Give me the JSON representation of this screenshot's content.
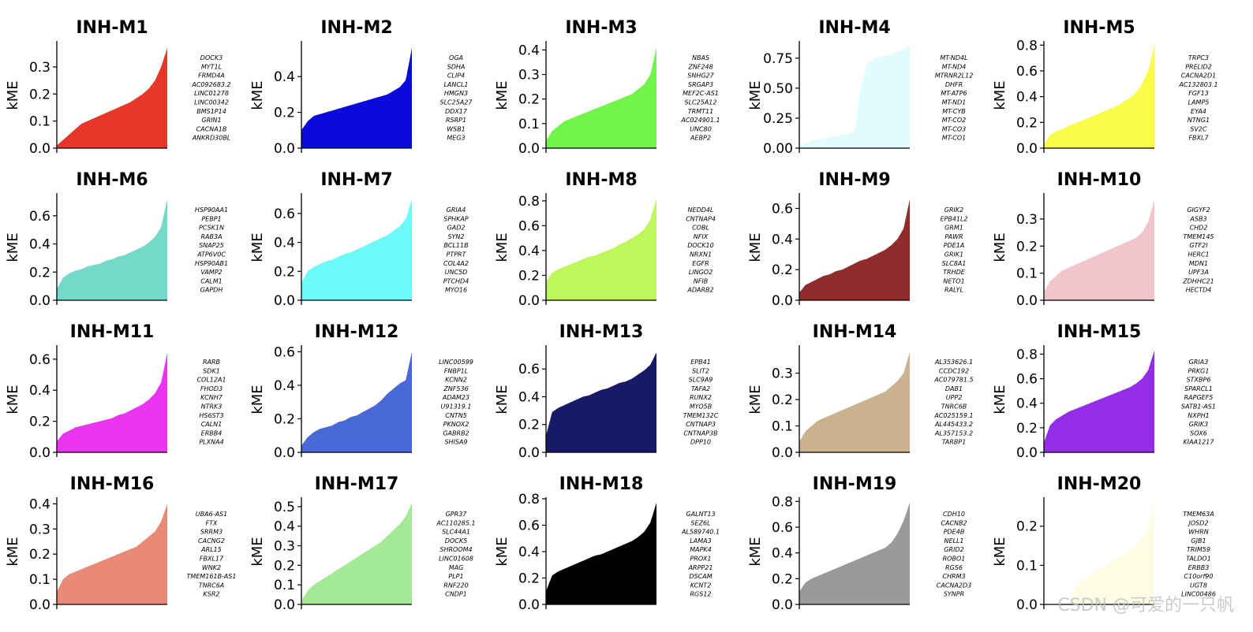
{
  "watermark": "CSDN @可爱的一只帆",
  "chart_data": [
    {
      "type": "area",
      "title": "INH-M1",
      "ylabel": "kME",
      "color": "#e8362a",
      "ylim": [
        0,
        0.39
      ],
      "yticks": [
        0.0,
        0.1,
        0.2,
        0.3
      ],
      "tick_labels": [
        "0.0",
        "0.1",
        "0.2",
        "0.3"
      ],
      "values": [
        0.01,
        0.03,
        0.05,
        0.07,
        0.09,
        0.1,
        0.11,
        0.12,
        0.13,
        0.14,
        0.15,
        0.16,
        0.17,
        0.185,
        0.2,
        0.22,
        0.25,
        0.3,
        0.37
      ],
      "genes": [
        "DOCK3",
        "MYT1L",
        "FRMD4A",
        "AC092683.2",
        "LINC01278",
        "LINC00342",
        "BMS1P14",
        "GRIN1",
        "CACNA1B",
        "ANKRD30BL"
      ]
    },
    {
      "type": "area",
      "title": "INH-M2",
      "ylabel": "kME",
      "color": "#0a0adf",
      "ylim": [
        0,
        0.59
      ],
      "yticks": [
        0.0,
        0.2,
        0.4
      ],
      "tick_labels": [
        "0.0",
        "0.2",
        "0.4"
      ],
      "values": [
        0.1,
        0.15,
        0.18,
        0.19,
        0.2,
        0.21,
        0.22,
        0.23,
        0.24,
        0.25,
        0.26,
        0.27,
        0.28,
        0.29,
        0.3,
        0.32,
        0.34,
        0.38,
        0.56
      ],
      "genes": [
        "OGA",
        "SDHA",
        "CLIP4",
        "LANCL1",
        "HMGN3",
        "SLC25A27",
        "DDX17",
        "RSRP1",
        "WSB1",
        "MEG3"
      ]
    },
    {
      "type": "area",
      "title": "INH-M3",
      "ylabel": "kME",
      "color": "#72f54a",
      "ylim": [
        0,
        0.43
      ],
      "yticks": [
        0.0,
        0.1,
        0.2,
        0.3,
        0.4
      ],
      "tick_labels": [
        "0.0",
        "0.1",
        "0.2",
        "0.3",
        "0.4"
      ],
      "values": [
        0.03,
        0.07,
        0.09,
        0.11,
        0.12,
        0.13,
        0.14,
        0.15,
        0.16,
        0.17,
        0.18,
        0.19,
        0.2,
        0.21,
        0.22,
        0.24,
        0.26,
        0.3,
        0.41
      ],
      "genes": [
        "NBAS",
        "ZNF248",
        "SNHG27",
        "SRGAP3",
        "MEF2C-AS1",
        "SLC25A12",
        "TRMT11",
        "AC024901.1",
        "UNC80",
        "AEBP2"
      ]
    },
    {
      "type": "area",
      "title": "INH-M4",
      "ylabel": "kME",
      "color": "#e0fcfc",
      "ylim": [
        0,
        0.88
      ],
      "yticks": [
        0.0,
        0.25,
        0.5,
        0.75
      ],
      "tick_labels": [
        "0.00",
        "0.25",
        "0.50",
        "0.75"
      ],
      "values": [
        0.02,
        0.04,
        0.06,
        0.07,
        0.08,
        0.09,
        0.1,
        0.11,
        0.12,
        0.14,
        0.5,
        0.7,
        0.74,
        0.76,
        0.77,
        0.78,
        0.8,
        0.82,
        0.86
      ],
      "genes": [
        "MT-ND4L",
        "MT-ND4",
        "MTRNR2L12",
        "DHFR",
        "MT-ATP6",
        "MT-ND1",
        "MT-CYB",
        "MT-CO2",
        "MT-CO3",
        "MT-CO1"
      ]
    },
    {
      "type": "area",
      "title": "INH-M5",
      "ylabel": "kME",
      "color": "#fbfb4a",
      "ylim": [
        0,
        0.82
      ],
      "yticks": [
        0.0,
        0.2,
        0.4,
        0.6,
        0.8
      ],
      "tick_labels": [
        "0.0",
        "0.2",
        "0.4",
        "0.6",
        "0.8"
      ],
      "values": [
        0.03,
        0.1,
        0.13,
        0.15,
        0.17,
        0.19,
        0.21,
        0.23,
        0.25,
        0.27,
        0.29,
        0.31,
        0.33,
        0.36,
        0.39,
        0.43,
        0.5,
        0.6,
        0.8
      ],
      "genes": [
        "TRPC3",
        "PRELID2",
        "CACNA2D1",
        "AC132803.1",
        "FGF13",
        "LAMP5",
        "EYA4",
        "NTNG1",
        "SV2C",
        "FBXL7"
      ]
    },
    {
      "type": "area",
      "title": "INH-M6",
      "ylabel": "kME",
      "color": "#73d9c9",
      "ylim": [
        0,
        0.75
      ],
      "yticks": [
        0.0,
        0.2,
        0.4,
        0.6
      ],
      "tick_labels": [
        "0.0",
        "0.2",
        "0.4",
        "0.6"
      ],
      "values": [
        0.08,
        0.16,
        0.19,
        0.21,
        0.22,
        0.24,
        0.25,
        0.26,
        0.28,
        0.29,
        0.31,
        0.32,
        0.34,
        0.36,
        0.38,
        0.41,
        0.45,
        0.52,
        0.72
      ],
      "genes": [
        "HSP90AA1",
        "PEBP1",
        "PCSK1N",
        "RAB3A",
        "SNAP25",
        "ATP6V0C",
        "HSP90AB1",
        "VAMP2",
        "CALM1",
        "GAPDH"
      ]
    },
    {
      "type": "area",
      "title": "INH-M7",
      "ylabel": "kME",
      "color": "#6ffafa",
      "ylim": [
        0,
        0.73
      ],
      "yticks": [
        0.0,
        0.2,
        0.4,
        0.6
      ],
      "tick_labels": [
        "0.0",
        "0.2",
        "0.4",
        "0.6"
      ],
      "values": [
        0.12,
        0.2,
        0.23,
        0.25,
        0.27,
        0.28,
        0.3,
        0.32,
        0.33,
        0.35,
        0.37,
        0.39,
        0.41,
        0.43,
        0.45,
        0.48,
        0.51,
        0.56,
        0.7
      ],
      "genes": [
        "GRIA4",
        "SPHKAP",
        "GAD2",
        "SYN2",
        "BCL11B",
        "PTPRT",
        "COL4A2",
        "UNC5D",
        "PTCHD4",
        "MYO16"
      ]
    },
    {
      "type": "area",
      "title": "INH-M8",
      "ylabel": "kME",
      "color": "#bdf75a",
      "ylim": [
        0,
        0.85
      ],
      "yticks": [
        0.0,
        0.2,
        0.4,
        0.6,
        0.8
      ],
      "tick_labels": [
        "0.0",
        "0.2",
        "0.4",
        "0.6",
        "0.8"
      ],
      "values": [
        0.15,
        0.22,
        0.25,
        0.27,
        0.29,
        0.31,
        0.33,
        0.35,
        0.36,
        0.38,
        0.4,
        0.42,
        0.45,
        0.47,
        0.5,
        0.53,
        0.57,
        0.65,
        0.82
      ],
      "genes": [
        "NEDD4L",
        "CNTNAP4",
        "COBL",
        "NFIX",
        "DOCK10",
        "NRXN1",
        "EGFR",
        "LINGO2",
        "NFIB",
        "ADARB2"
      ]
    },
    {
      "type": "area",
      "title": "INH-M9",
      "ylabel": "kME",
      "color": "#922b2b",
      "ylim": [
        0,
        0.69
      ],
      "yticks": [
        0.0,
        0.2,
        0.4,
        0.6
      ],
      "tick_labels": [
        "0.0",
        "0.2",
        "0.4",
        "0.6"
      ],
      "values": [
        0.05,
        0.1,
        0.12,
        0.14,
        0.16,
        0.17,
        0.19,
        0.2,
        0.22,
        0.24,
        0.26,
        0.27,
        0.29,
        0.31,
        0.33,
        0.36,
        0.4,
        0.47,
        0.66
      ],
      "genes": [
        "GRIK2",
        "EPB41L2",
        "GRM1",
        "PAWR",
        "PDE1A",
        "GRIK1",
        "SLC8A1",
        "TRHDE",
        "NETO1",
        "RALYL"
      ]
    },
    {
      "type": "area",
      "title": "INH-M10",
      "ylabel": "kME",
      "color": "#f2c5cd",
      "ylim": [
        0,
        0.39
      ],
      "yticks": [
        0.0,
        0.1,
        0.2,
        0.3
      ],
      "tick_labels": [
        "0.0",
        "0.1",
        "0.2",
        "0.3"
      ],
      "values": [
        0.03,
        0.07,
        0.09,
        0.11,
        0.12,
        0.13,
        0.14,
        0.15,
        0.16,
        0.17,
        0.18,
        0.19,
        0.2,
        0.21,
        0.22,
        0.23,
        0.25,
        0.29,
        0.37
      ],
      "genes": [
        "GIGYF2",
        "ASB3",
        "CHD2",
        "TMEM145",
        "GTF2I",
        "HERC1",
        "MDN1",
        "UPF3A",
        "ZDHHC21",
        "HECTD4"
      ]
    },
    {
      "type": "area",
      "title": "INH-M11",
      "ylabel": "kME",
      "color": "#ea35ee",
      "ylim": [
        0,
        0.68
      ],
      "yticks": [
        0.0,
        0.2,
        0.4,
        0.6
      ],
      "tick_labels": [
        "0.0",
        "0.2",
        "0.4",
        "0.6"
      ],
      "values": [
        0.07,
        0.12,
        0.14,
        0.16,
        0.17,
        0.18,
        0.19,
        0.2,
        0.21,
        0.22,
        0.24,
        0.25,
        0.27,
        0.29,
        0.31,
        0.34,
        0.38,
        0.45,
        0.64
      ],
      "genes": [
        "RARB",
        "SDK1",
        "COL12A1",
        "FHOD3",
        "KCNH7",
        "NTRK3",
        "HS6ST3",
        "CALN1",
        "ERBB4",
        "PLXNA4"
      ]
    },
    {
      "type": "area",
      "title": "INH-M12",
      "ylabel": "kME",
      "color": "#4a69d9",
      "ylim": [
        0,
        0.63
      ],
      "yticks": [
        0.0,
        0.2,
        0.4,
        0.6
      ],
      "tick_labels": [
        "0.0",
        "0.2",
        "0.4",
        "0.6"
      ],
      "values": [
        0.04,
        0.09,
        0.12,
        0.14,
        0.15,
        0.16,
        0.18,
        0.19,
        0.21,
        0.22,
        0.24,
        0.26,
        0.28,
        0.31,
        0.35,
        0.38,
        0.41,
        0.43,
        0.6
      ],
      "genes": [
        "LINC00599",
        "FNBP1L",
        "KCNN2",
        "ZNF536",
        "ADAM23",
        "U91319.1",
        "CNTN5",
        "PKNOX2",
        "GABRB2",
        "SHISA9"
      ]
    },
    {
      "type": "area",
      "title": "INH-M13",
      "ylabel": "kME",
      "color": "#19196a",
      "ylim": [
        0,
        0.76
      ],
      "yticks": [
        0.0,
        0.2,
        0.4,
        0.6
      ],
      "tick_labels": [
        "0.0",
        "0.2",
        "0.4",
        "0.6"
      ],
      "values": [
        0.12,
        0.29,
        0.32,
        0.34,
        0.36,
        0.38,
        0.4,
        0.41,
        0.43,
        0.45,
        0.46,
        0.48,
        0.5,
        0.51,
        0.53,
        0.56,
        0.59,
        0.63,
        0.72
      ],
      "genes": [
        "EPB41",
        "SLIT2",
        "SLC9A9",
        "TAFA2",
        "RUNX2",
        "MYO5B",
        "TMEM132C",
        "CNTNAP3",
        "CNTNAP3B",
        "DPP10"
      ]
    },
    {
      "type": "area",
      "title": "INH-M14",
      "ylabel": "kME",
      "color": "#cbb28f",
      "ylim": [
        0,
        0.4
      ],
      "yticks": [
        0.0,
        0.1,
        0.2,
        0.3
      ],
      "tick_labels": [
        "0.0",
        "0.1",
        "0.2",
        "0.3"
      ],
      "values": [
        0.04,
        0.08,
        0.1,
        0.12,
        0.13,
        0.14,
        0.15,
        0.16,
        0.17,
        0.18,
        0.19,
        0.2,
        0.21,
        0.22,
        0.23,
        0.25,
        0.27,
        0.3,
        0.38
      ],
      "genes": [
        "AL353626.1",
        "CCDC192",
        "AC079781.5",
        "DAB1",
        "UPP2",
        "TNRC6B",
        "AC025159.1",
        "AL445433.2",
        "AL357153.2",
        "TARBP1"
      ]
    },
    {
      "type": "area",
      "title": "INH-M15",
      "ylabel": "kME",
      "color": "#932de8",
      "ylim": [
        0,
        0.86
      ],
      "yticks": [
        0.0,
        0.2,
        0.4,
        0.6,
        0.8
      ],
      "tick_labels": [
        "0.0",
        "0.2",
        "0.4",
        "0.6",
        "0.8"
      ],
      "values": [
        0.08,
        0.22,
        0.27,
        0.3,
        0.33,
        0.35,
        0.37,
        0.39,
        0.41,
        0.43,
        0.45,
        0.47,
        0.49,
        0.51,
        0.53,
        0.56,
        0.6,
        0.67,
        0.83
      ],
      "genes": [
        "GRIA3",
        "PRKG1",
        "STXBP6",
        "SPARCL1",
        "RAPGEF5",
        "SATB1-AS1",
        "NXPH1",
        "GRIK3",
        "SOX6",
        "KIAA1217"
      ]
    },
    {
      "type": "area",
      "title": "INH-M16",
      "ylabel": "kME",
      "color": "#e98a77",
      "ylim": [
        0,
        0.42
      ],
      "yticks": [
        0.0,
        0.1,
        0.2,
        0.3,
        0.4
      ],
      "tick_labels": [
        "0.0",
        "0.1",
        "0.2",
        "0.3",
        "0.4"
      ],
      "values": [
        0.05,
        0.1,
        0.12,
        0.13,
        0.14,
        0.15,
        0.16,
        0.17,
        0.18,
        0.19,
        0.2,
        0.21,
        0.22,
        0.23,
        0.25,
        0.27,
        0.29,
        0.33,
        0.4
      ],
      "genes": [
        "UBA6-AS1",
        "FTX",
        "SRRM3",
        "CACNG2",
        "ARL15",
        "FBXL17",
        "WNK2",
        "TMEM161B-AS1",
        "TNRC6A",
        "KSR2"
      ]
    },
    {
      "type": "area",
      "title": "INH-M17",
      "ylabel": "kME",
      "color": "#a4ea96",
      "ylim": [
        0,
        0.54
      ],
      "yticks": [
        0.0,
        0.1,
        0.2,
        0.3,
        0.4,
        0.5
      ],
      "tick_labels": [
        "0.0",
        "0.1",
        "0.2",
        "0.3",
        "0.4",
        "0.5"
      ],
      "values": [
        0.02,
        0.07,
        0.1,
        0.12,
        0.14,
        0.16,
        0.18,
        0.2,
        0.22,
        0.24,
        0.26,
        0.28,
        0.3,
        0.32,
        0.35,
        0.38,
        0.41,
        0.45,
        0.52
      ],
      "genes": [
        "GPR37",
        "AC110285.1",
        "SLC44A1",
        "DOCK5",
        "SHROOM4",
        "LINC01608",
        "MAG",
        "PLP1",
        "RNF220",
        "CNDP1"
      ]
    },
    {
      "type": "area",
      "title": "INH-M18",
      "ylabel": "kME",
      "color": "#000000",
      "ylim": [
        0,
        0.8
      ],
      "yticks": [
        0.0,
        0.2,
        0.4,
        0.6,
        0.8
      ],
      "tick_labels": [
        "0.0",
        "0.2",
        "0.4",
        "0.6",
        "0.8"
      ],
      "values": [
        0.1,
        0.22,
        0.25,
        0.27,
        0.29,
        0.31,
        0.33,
        0.35,
        0.37,
        0.38,
        0.4,
        0.42,
        0.44,
        0.46,
        0.48,
        0.51,
        0.55,
        0.62,
        0.77
      ],
      "genes": [
        "GALNT13",
        "SEZ6L",
        "AL589740.1",
        "LAMA3",
        "MAPK4",
        "PROX1",
        "ARPP21",
        "DSCAM",
        "KCNT2",
        "RGS12"
      ]
    },
    {
      "type": "area",
      "title": "INH-M19",
      "ylabel": "kME",
      "color": "#9a9a9a",
      "ylim": [
        0,
        0.82
      ],
      "yticks": [
        0.0,
        0.2,
        0.4,
        0.6,
        0.8
      ],
      "tick_labels": [
        "0.0",
        "0.2",
        "0.4",
        "0.6",
        "0.8"
      ],
      "values": [
        0.1,
        0.17,
        0.2,
        0.22,
        0.24,
        0.26,
        0.28,
        0.3,
        0.32,
        0.34,
        0.36,
        0.38,
        0.4,
        0.42,
        0.44,
        0.48,
        0.55,
        0.65,
        0.79
      ],
      "genes": [
        "CDH10",
        "CACNB2",
        "PDE4B",
        "NELL1",
        "GRID2",
        "ROBO1",
        "RGS6",
        "CHRM3",
        "CACNA2D3",
        "SYNPR"
      ]
    },
    {
      "type": "area",
      "title": "INH-M20",
      "ylabel": "kME",
      "color": "#fdfde6",
      "ylim": [
        0,
        0.27
      ],
      "yticks": [
        0.0,
        0.1,
        0.2
      ],
      "tick_labels": [
        "0.0",
        "0.1",
        "0.2"
      ],
      "values": [
        0.0,
        0.0,
        0.0,
        0.0,
        0.0,
        0.04,
        0.06,
        0.07,
        0.08,
        0.09,
        0.1,
        0.11,
        0.12,
        0.13,
        0.14,
        0.15,
        0.17,
        0.2,
        0.26
      ],
      "genes": [
        "TMEM63A",
        "JOSD2",
        "WHRN",
        "GJB1",
        "TRIM59",
        "TALDO1",
        "ERBB3",
        "C10orf90",
        "UGT8",
        "LINC00486"
      ]
    }
  ]
}
